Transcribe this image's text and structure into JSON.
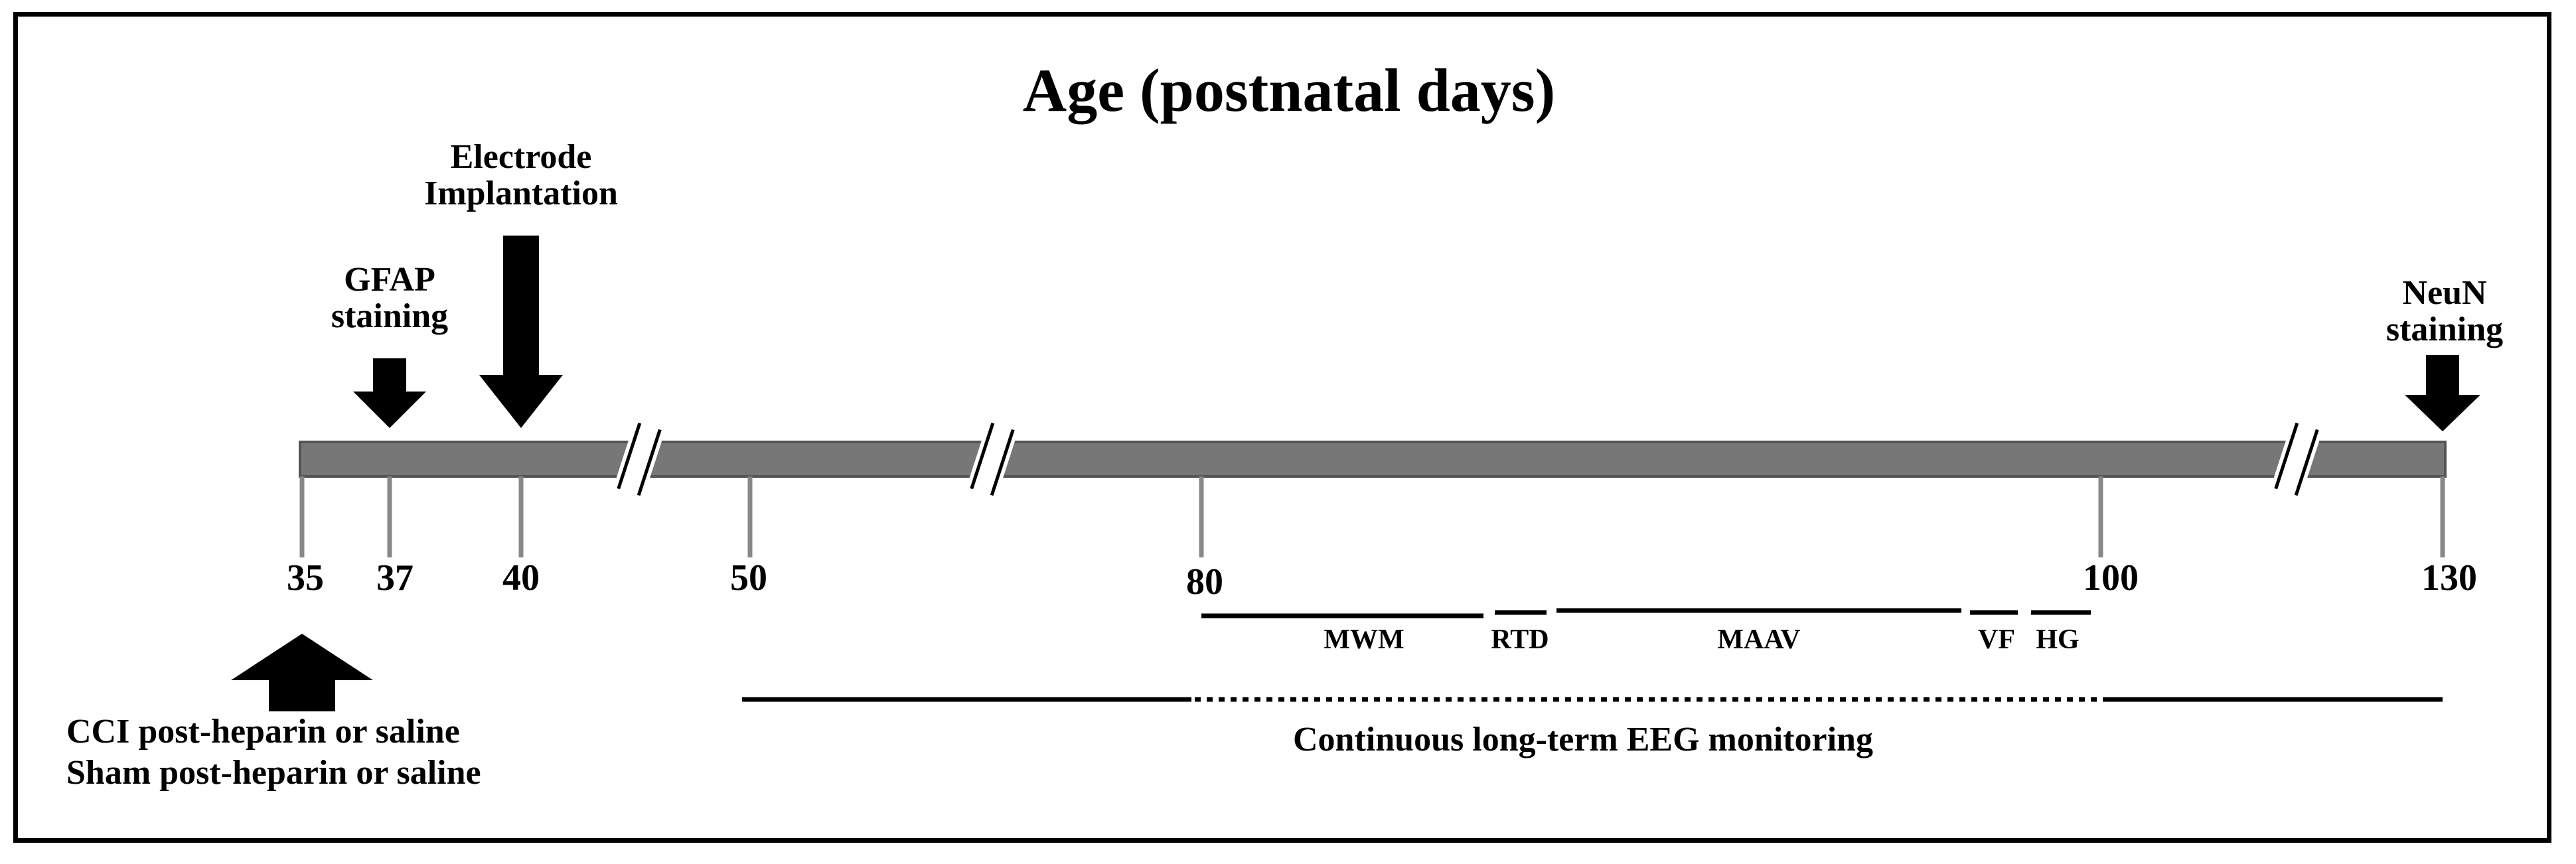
{
  "title": "Age (postnatal days)",
  "timeline": {
    "ticks": [
      {
        "label": "35"
      },
      {
        "label": "37"
      },
      {
        "label": "40"
      },
      {
        "label": "50"
      },
      {
        "label": "80"
      },
      {
        "label": "100"
      },
      {
        "label": "130"
      }
    ],
    "axis_breaks": 3
  },
  "annotations": {
    "gfap": {
      "line1": "GFAP",
      "line2": "staining"
    },
    "electrode": {
      "line1": "Electrode",
      "line2": "Implantation"
    },
    "neun": {
      "line1": "NeuN",
      "line2": "staining"
    }
  },
  "behavioral_tests": [
    {
      "label": "MWM"
    },
    {
      "label": "RTD"
    },
    {
      "label": "MAAV"
    },
    {
      "label": "VF"
    },
    {
      "label": "HG"
    }
  ],
  "eeg": {
    "label": "Continuous long-term EEG monitoring"
  },
  "injury": {
    "line1": "CCI post-heparin or saline",
    "line2": "Sham post-heparin or saline"
  },
  "colors": {
    "axis_bar": "#777777",
    "axis_border": "#555555",
    "ink": "#000000"
  }
}
